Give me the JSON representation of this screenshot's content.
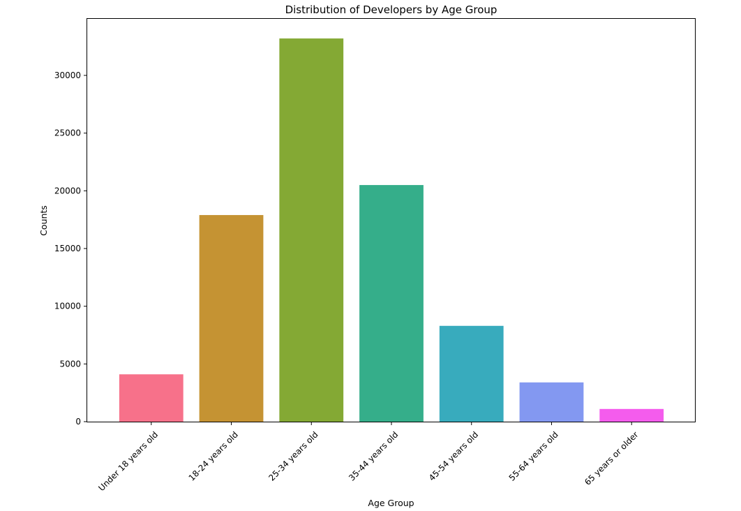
{
  "chart_data": {
    "type": "bar",
    "title": "Distribution of Developers by Age Group",
    "xlabel": "Age Group",
    "ylabel": "Counts",
    "categories": [
      "Under 18 years old",
      "18-24 years old",
      "25-34 years old",
      "35-44 years old",
      "45-54 years old",
      "55-64 years old",
      "65 years or older"
    ],
    "values": [
      4100,
      17900,
      33200,
      20500,
      8300,
      3400,
      1100
    ],
    "colors": [
      "#f7718a",
      "#c59333",
      "#84a934",
      "#35ae8a",
      "#38abbd",
      "#8398f1",
      "#f45ced"
    ],
    "ylim": [
      0,
      34900
    ],
    "yticks": [
      0,
      5000,
      10000,
      15000,
      20000,
      25000,
      30000
    ],
    "grid": false,
    "legend": "none"
  }
}
